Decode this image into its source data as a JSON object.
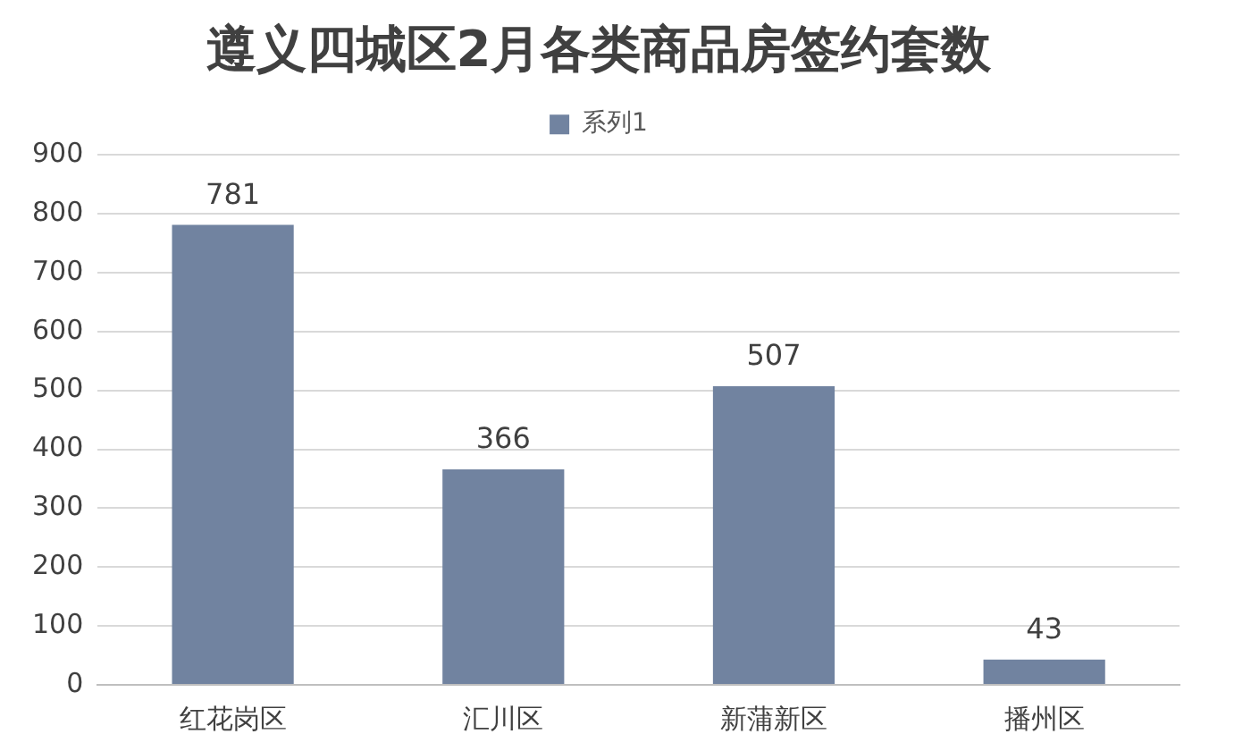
{
  "chart_data": {
    "type": "bar",
    "title": "遵义四城区2月各类商品房签约套数",
    "categories": [
      "红花岗区",
      "汇川区",
      "新蒲新区",
      "播州区"
    ],
    "series": [
      {
        "name": "系列1",
        "color": "#7183a0",
        "values": [
          781,
          366,
          507,
          43
        ]
      }
    ],
    "ylim": [
      0,
      900
    ],
    "yticks": [
      0,
      100,
      200,
      300,
      400,
      500,
      600,
      700,
      800,
      900
    ],
    "grid": "y",
    "legend": "top",
    "data_labels": true
  }
}
